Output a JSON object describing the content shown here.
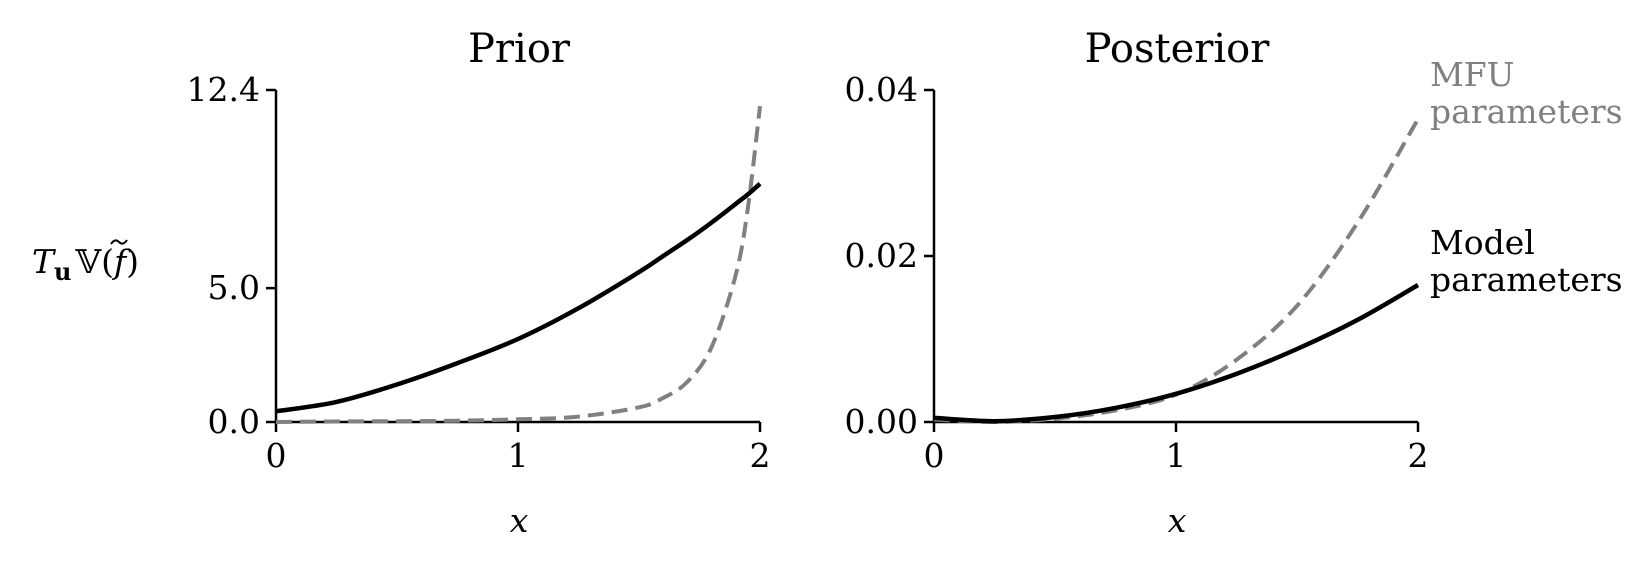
{
  "colors": {
    "model": "#000000",
    "mfu": "#808080"
  },
  "chart_data": [
    {
      "type": "line",
      "title": "Prior",
      "xlabel": "x",
      "ylabel_parts": {
        "T": "T",
        "sub": "u",
        "rest": "𝕍(",
        "f": "f",
        "close": ")"
      },
      "xlim": [
        0,
        2
      ],
      "ylim": [
        0,
        12.4
      ],
      "xticks": [
        0,
        1,
        2
      ],
      "xtick_labels": [
        "0",
        "1",
        "2"
      ],
      "yticks": [
        0,
        5.0,
        12.4
      ],
      "ytick_labels": [
        "0.0",
        "5.0",
        "12.4"
      ],
      "x": [
        0,
        0.25,
        0.5,
        0.75,
        1.0,
        1.25,
        1.5,
        1.6,
        1.7,
        1.8,
        1.9,
        1.95,
        2.0
      ],
      "series": [
        {
          "key": "model",
          "style": "solid",
          "values": [
            0.4,
            0.75,
            1.4,
            2.2,
            3.1,
            4.25,
            5.6,
            6.2,
            6.8,
            7.45,
            8.15,
            8.5,
            8.9
          ]
        },
        {
          "key": "mfu",
          "style": "dashed",
          "values": [
            0.0,
            0.02,
            0.03,
            0.05,
            0.1,
            0.2,
            0.55,
            0.9,
            1.5,
            2.8,
            5.5,
            8.0,
            11.8
          ]
        }
      ]
    },
    {
      "type": "line",
      "title": "Posterior",
      "xlabel": "x",
      "xlim": [
        0,
        2
      ],
      "ylim": [
        0,
        0.04
      ],
      "xticks": [
        0,
        1,
        2
      ],
      "xtick_labels": [
        "0",
        "1",
        "2"
      ],
      "yticks": [
        0,
        0.02,
        0.04
      ],
      "ytick_labels": [
        "0.00",
        "0.02",
        "0.04"
      ],
      "x": [
        0,
        0.25,
        0.5,
        0.75,
        1.0,
        1.25,
        1.5,
        1.75,
        2.0
      ],
      "series": [
        {
          "key": "model",
          "style": "solid",
          "name_lines": [
            "Model",
            "parameters"
          ],
          "values": [
            0.0005,
            0.0001,
            0.0006,
            0.0017,
            0.0034,
            0.0058,
            0.0088,
            0.0123,
            0.0165
          ]
        },
        {
          "key": "mfu",
          "style": "dashed",
          "name_lines": [
            "MFU",
            "parameters"
          ],
          "values": [
            0.0003,
            0.0,
            0.0004,
            0.0014,
            0.0033,
            0.0075,
            0.014,
            0.024,
            0.0365
          ]
        }
      ]
    }
  ]
}
